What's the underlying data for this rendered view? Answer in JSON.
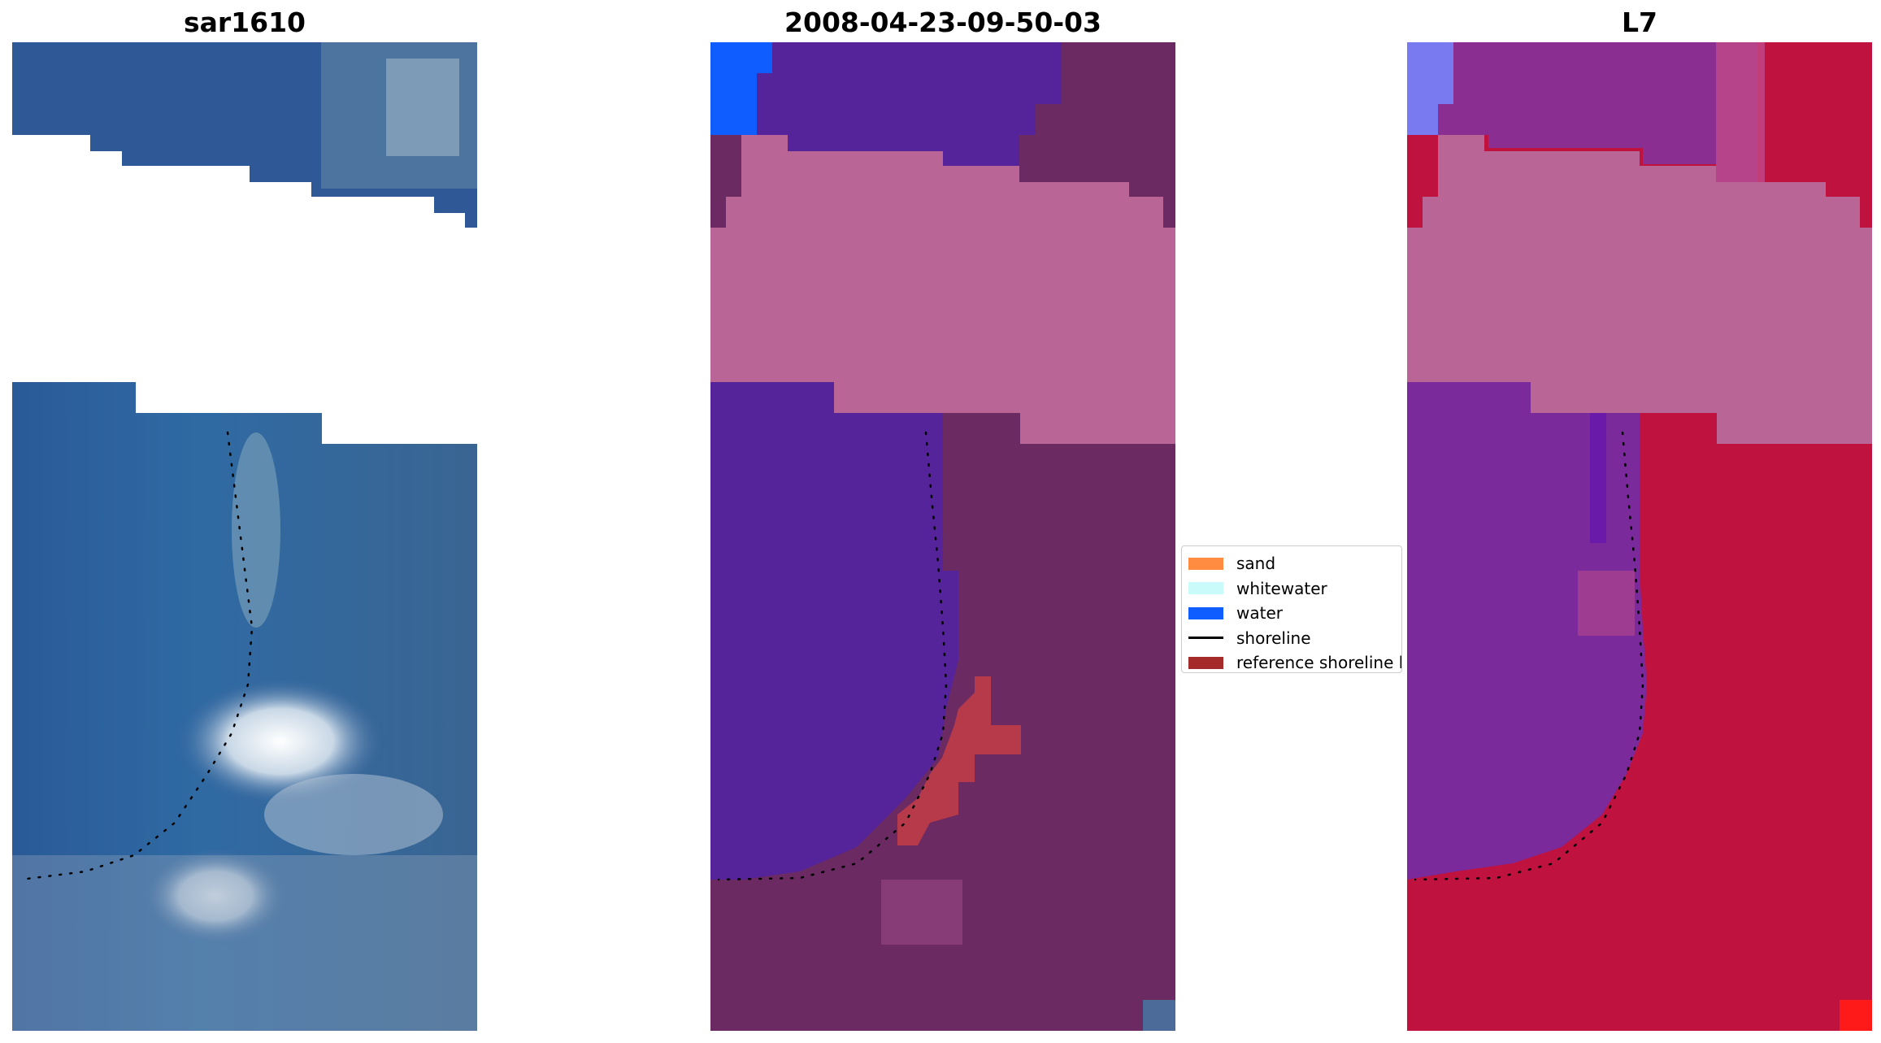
{
  "panels": [
    {
      "title": "sar1610"
    },
    {
      "title": "2008-04-23-09-50-03"
    },
    {
      "title": "L7"
    }
  ],
  "legend": [
    {
      "label": "sand",
      "color": "#ff8c40"
    },
    {
      "label": "whitewater",
      "color": "#c9fbfb"
    },
    {
      "label": "water",
      "color": "#0f5cff"
    },
    {
      "label": "shoreline",
      "color": "#000000"
    },
    {
      "label": "reference shoreline buffer",
      "color": "#a52a2a"
    }
  ],
  "colors": {
    "rgb_sea": "#2f5c96",
    "rgb_surf": "#dfe9f0",
    "classified_water": "#55239a",
    "classified_land": "#6b2a62",
    "cloud_mask": "#b96696",
    "buffer": "#b63a4a",
    "mndwi_water": "#7a2a9a",
    "mndwi_land": "#c0123e"
  }
}
